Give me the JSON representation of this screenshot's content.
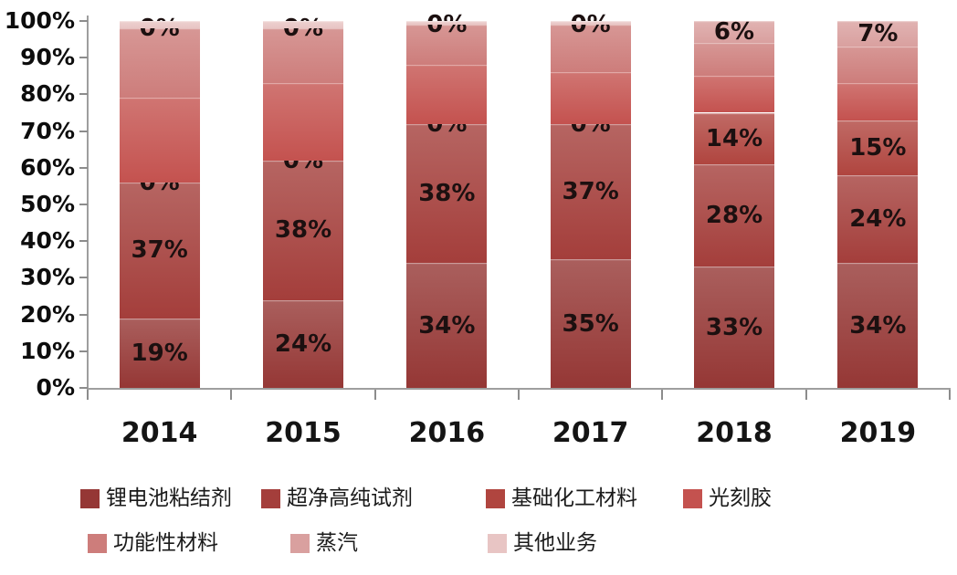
{
  "chart_data": {
    "type": "bar",
    "subtype": "stacked-100-percent",
    "title": "",
    "xlabel": "",
    "ylabel": "",
    "x": [
      "2014",
      "2015",
      "2016",
      "2017",
      "2018",
      "2019"
    ],
    "y_axis_ticks": [
      "0%",
      "10%",
      "20%",
      "30%",
      "40%",
      "50%",
      "60%",
      "70%",
      "80%",
      "90%",
      "100%"
    ],
    "ylim": [
      0,
      100
    ],
    "grid": "off",
    "legend_position": "bottom",
    "series": [
      {
        "name": "锂电池粘结剂",
        "color": "#953735",
        "labeled": true,
        "values": [
          19,
          24,
          34,
          35,
          33,
          34
        ]
      },
      {
        "name": "超净高纯试剂",
        "color": "#a43e3b",
        "labeled": true,
        "values": [
          37,
          38,
          38,
          37,
          28,
          24
        ]
      },
      {
        "name": "基础化工材料",
        "color": "#b0453f",
        "labeled": true,
        "values": [
          0,
          0,
          0,
          0,
          14,
          15
        ]
      },
      {
        "name": "光刻胶",
        "color": "#c4524f",
        "labeled": false,
        "values": [
          23,
          21,
          16,
          14,
          10,
          10
        ]
      },
      {
        "name": "功能性材料",
        "color": "#cd7d7b",
        "labeled": false,
        "values": [
          19,
          15,
          11,
          13,
          9,
          10
        ]
      },
      {
        "name": "蒸汽",
        "color": "#d9a09f",
        "labeled": true,
        "values": [
          0,
          0,
          0,
          0,
          6,
          7
        ]
      },
      {
        "name": "其他业务",
        "color": "#e8c5c4",
        "labeled": false,
        "values": [
          2,
          2,
          1,
          1,
          0,
          0
        ]
      }
    ],
    "data_labels_shown": {
      "锂电池粘结剂": [
        "19%",
        "24%",
        "34%",
        "35%",
        "33%",
        "34%"
      ],
      "超净高纯试剂": [
        "37%",
        "38%",
        "38%",
        "37%",
        "28%",
        "24%"
      ],
      "基础化工材料": [
        "0%",
        "0%",
        "0%",
        "0%",
        "14%",
        "15%"
      ],
      "蒸汽": [
        "0%",
        "0%",
        "0%",
        "0%",
        "6%",
        "7%"
      ]
    }
  }
}
